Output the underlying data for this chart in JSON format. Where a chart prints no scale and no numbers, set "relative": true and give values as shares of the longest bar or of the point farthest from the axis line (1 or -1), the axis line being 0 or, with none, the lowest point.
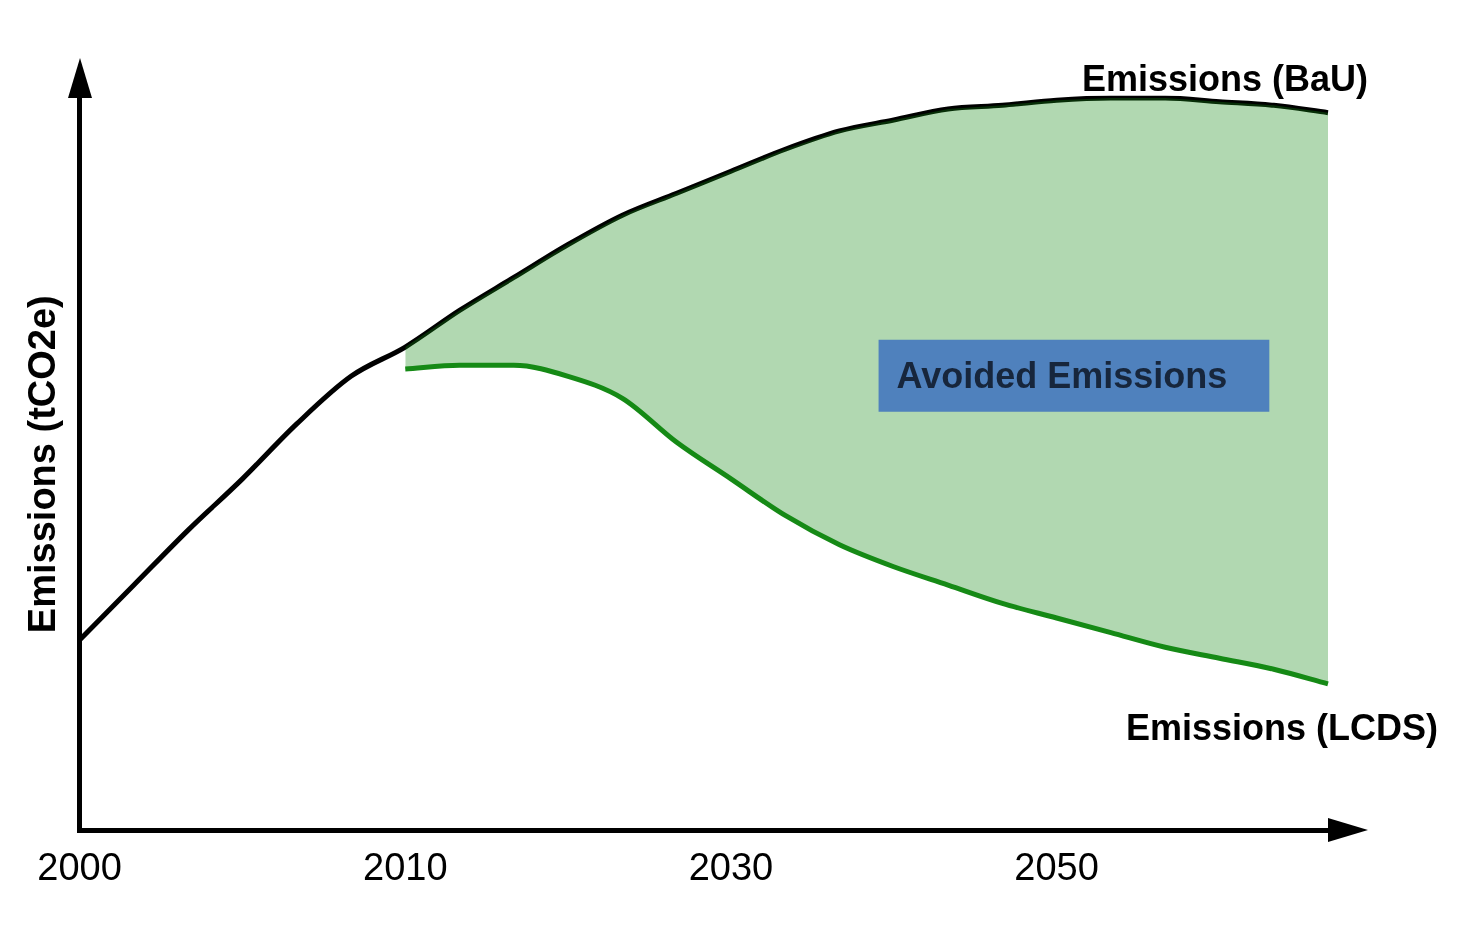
{
  "chart_data": {
    "type": "line",
    "relative": true,
    "ylabel": "Emissions (tCO2e)",
    "categories": [
      "2000",
      null,
      null,
      null,
      null,
      null,
      "2010",
      null,
      null,
      null,
      null,
      null,
      "2030",
      null,
      null,
      null,
      null,
      null,
      "2050",
      null,
      null,
      null,
      null,
      null
    ],
    "series": [
      {
        "name": "Emissions (BaU)",
        "color": "#000000",
        "values": [
          0.26,
          0.335,
          0.41,
          0.48,
          0.555,
          0.62,
          0.66,
          0.71,
          0.755,
          0.8,
          0.84,
          0.87,
          0.9,
          0.93,
          0.955,
          0.97,
          0.985,
          0.99,
          0.997,
          1,
          1,
          0.995,
          0.99,
          0.98
        ]
      },
      {
        "name": "Emissions (LCDS)",
        "color": "#168a16",
        "values": [
          null,
          null,
          null,
          null,
          null,
          null,
          0.63,
          0.635,
          0.635,
          0.62,
          0.59,
          0.53,
          0.48,
          0.43,
          0.39,
          0.36,
          0.335,
          0.31,
          0.29,
          0.27,
          0.25,
          0.235,
          0.22,
          0.2
        ],
        "lower": [
          null,
          null,
          null,
          null,
          null,
          null,
          0.63,
          0.635,
          0.635,
          0.62,
          0.59,
          0.53,
          0.48,
          0.43,
          0.39,
          0.36,
          0.335,
          0.31,
          0.29,
          0.27,
          0.25,
          0.235,
          0.22,
          0.2
        ],
        "upper": [
          null,
          null,
          null,
          null,
          null,
          null,
          0.66,
          0.71,
          0.755,
          0.8,
          0.84,
          0.87,
          0.9,
          0.93,
          0.955,
          0.97,
          0.985,
          0.99,
          0.997,
          1,
          1,
          0.995,
          0.99,
          0.98
        ]
      }
    ],
    "annotations": [
      "Avoided Emissions"
    ],
    "grid": false,
    "legend": false,
    "marker": "none",
    "line_style": "solid"
  }
}
